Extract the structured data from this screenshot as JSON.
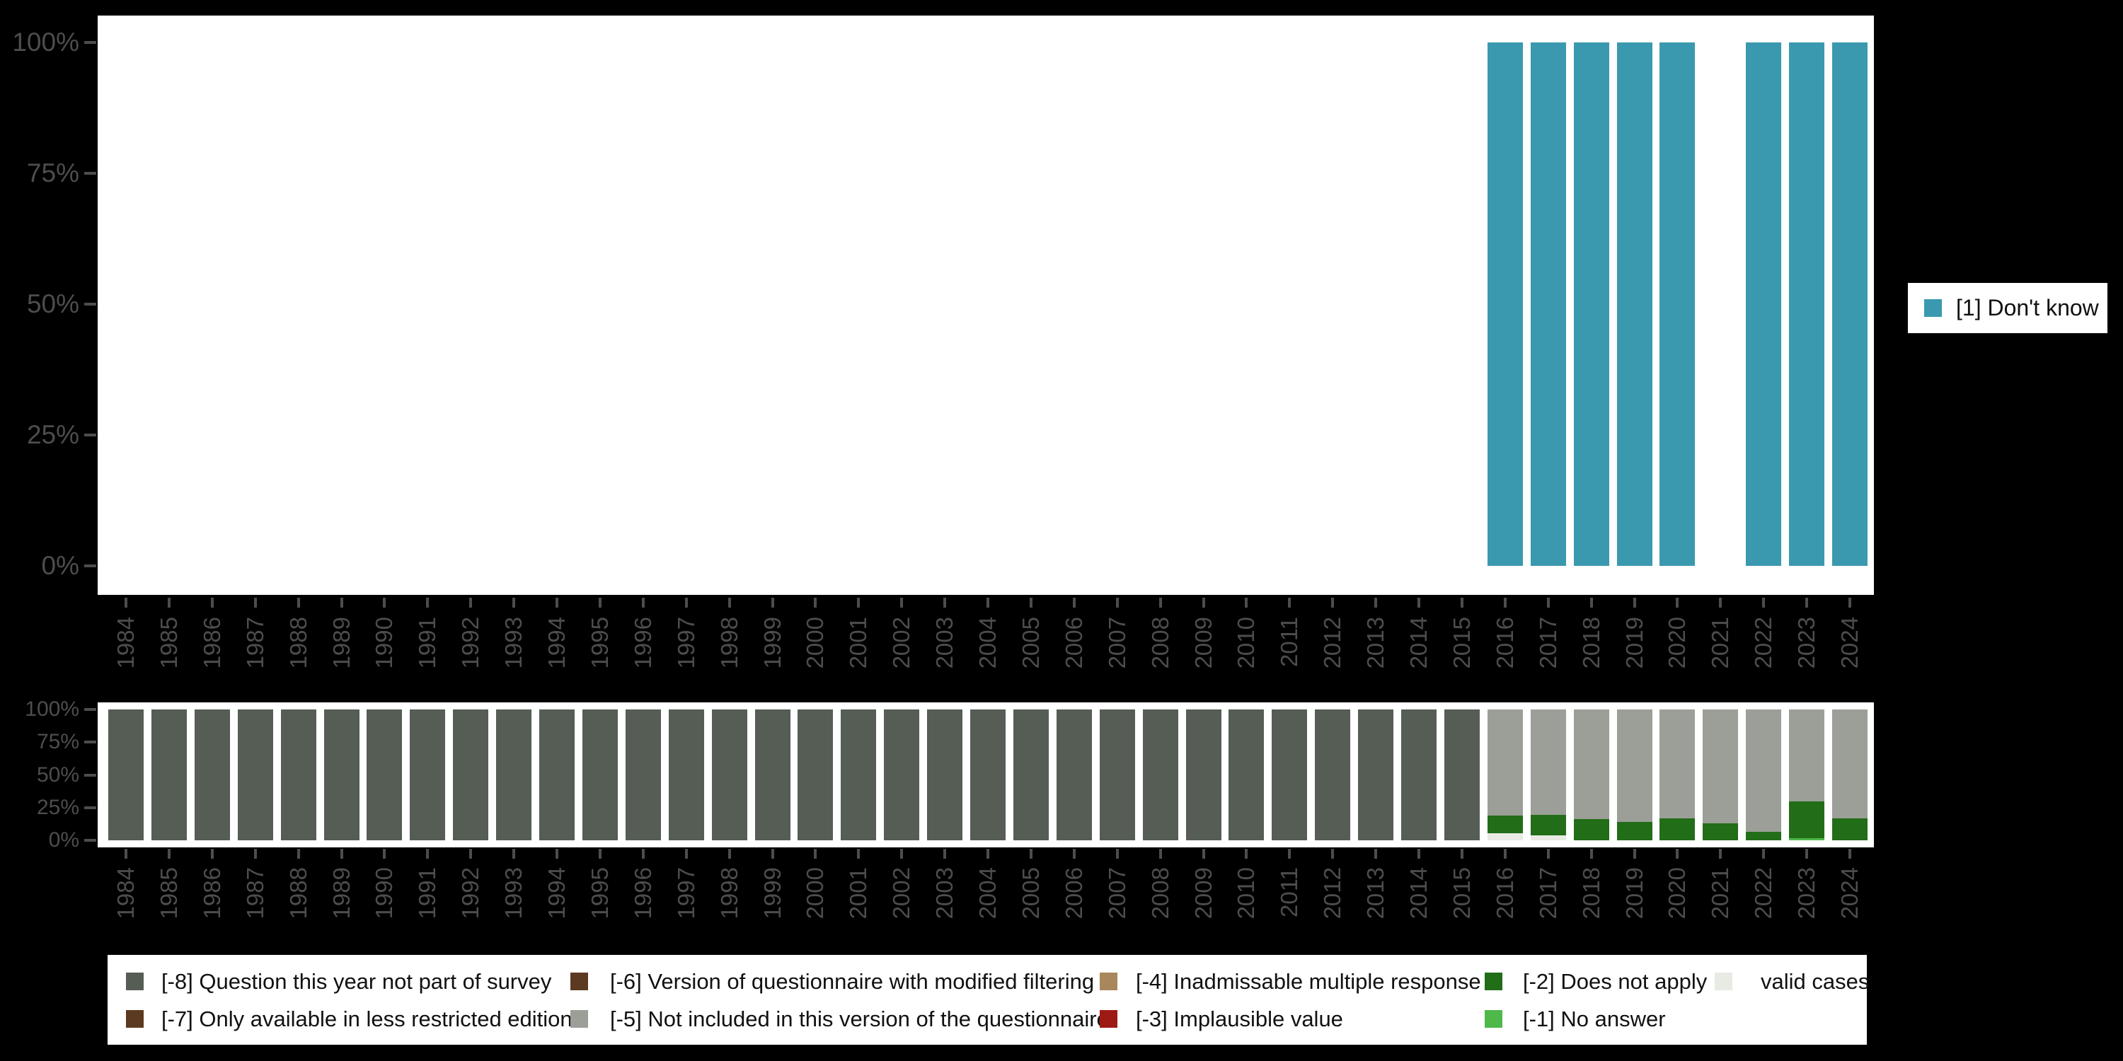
{
  "colors": {
    "background": "#000000",
    "panel": "#ffffff",
    "axis_text": "#4d4d4d",
    "dont_know": "#3a99ae",
    "question_not_part": "#555d55",
    "less_restricted": "#5c3a21",
    "modified_filtering": "#5c3a21",
    "not_included": "#9b9f97",
    "inadmissable": "#a8875c",
    "implausible": "#9e1a15",
    "does_not_apply": "#226d17",
    "no_answer": "#4eb84a",
    "valid_cases": "#e8ebe4"
  },
  "chart_data": [
    {
      "type": "bar",
      "subtype": "stacked-percent",
      "title": "",
      "xlabel": "",
      "ylabel": "",
      "ylim": [
        0,
        100
      ],
      "grid": false,
      "y_tick_labels": [
        "100%",
        "75%",
        "50%",
        "25%",
        "0%"
      ],
      "x": [
        "1984",
        "1985",
        "1986",
        "1987",
        "1988",
        "1989",
        "1990",
        "1991",
        "1992",
        "1993",
        "1994",
        "1995",
        "1996",
        "1997",
        "1998",
        "1999",
        "2000",
        "2001",
        "2002",
        "2003",
        "2004",
        "2005",
        "2006",
        "2007",
        "2008",
        "2009",
        "2010",
        "2011",
        "2012",
        "2013",
        "2014",
        "2015",
        "2016",
        "2017",
        "2018",
        "2019",
        "2020",
        "2021",
        "2022",
        "2023",
        "2024"
      ],
      "series": [
        {
          "name": "[1] Don't know",
          "color": "#3a99ae",
          "values": [
            0,
            0,
            0,
            0,
            0,
            0,
            0,
            0,
            0,
            0,
            0,
            0,
            0,
            0,
            0,
            0,
            0,
            0,
            0,
            0,
            0,
            0,
            0,
            0,
            0,
            0,
            0,
            0,
            0,
            0,
            0,
            0,
            100,
            100,
            100,
            100,
            100,
            0,
            100,
            100,
            100
          ]
        }
      ],
      "legend": {
        "position": "right",
        "items": [
          {
            "label": "[1] Don't know",
            "color": "#3a99ae"
          }
        ]
      }
    },
    {
      "type": "bar",
      "subtype": "stacked-percent",
      "title": "",
      "xlabel": "",
      "ylabel": "",
      "ylim": [
        0,
        100
      ],
      "grid": false,
      "y_tick_labels": [
        "100%",
        "75%",
        "50%",
        "25%",
        "0%"
      ],
      "x": [
        "1984",
        "1985",
        "1986",
        "1987",
        "1988",
        "1989",
        "1990",
        "1991",
        "1992",
        "1993",
        "1994",
        "1995",
        "1996",
        "1997",
        "1998",
        "1999",
        "2000",
        "2001",
        "2002",
        "2003",
        "2004",
        "2005",
        "2006",
        "2007",
        "2008",
        "2009",
        "2010",
        "2011",
        "2012",
        "2013",
        "2014",
        "2015",
        "2016",
        "2017",
        "2018",
        "2019",
        "2020",
        "2021",
        "2022",
        "2023",
        "2024"
      ],
      "series": [
        {
          "name": "valid cases",
          "color": "#e8ebe4",
          "values": [
            0,
            0,
            0,
            0,
            0,
            0,
            0,
            0,
            0,
            0,
            0,
            0,
            0,
            0,
            0,
            0,
            0,
            0,
            0,
            0,
            0,
            0,
            0,
            0,
            0,
            0,
            0,
            0,
            0,
            0,
            0,
            0,
            5.5,
            4,
            0,
            0,
            0,
            0,
            0,
            0,
            0
          ]
        },
        {
          "name": "[-1] No answer",
          "color": "#4eb84a",
          "values": [
            0,
            0,
            0,
            0,
            0,
            0,
            0,
            0,
            0,
            0,
            0,
            0,
            0,
            0,
            0,
            0,
            0,
            0,
            0,
            0,
            0,
            0,
            0,
            0,
            0,
            0,
            0,
            0,
            0,
            0,
            0,
            0,
            0,
            0,
            0,
            0,
            0,
            0,
            0,
            1.5,
            0
          ]
        },
        {
          "name": "[-2] Does not apply",
          "color": "#226d17",
          "values": [
            0,
            0,
            0,
            0,
            0,
            0,
            0,
            0,
            0,
            0,
            0,
            0,
            0,
            0,
            0,
            0,
            0,
            0,
            0,
            0,
            0,
            0,
            0,
            0,
            0,
            0,
            0,
            0,
            0,
            0,
            0,
            0,
            13.5,
            15.5,
            16,
            14,
            17,
            13,
            6.5,
            28.5,
            16.5
          ]
        },
        {
          "name": "[-5] Not included in this version of the questionnaire",
          "color": "#9b9f97",
          "values": [
            0,
            0,
            0,
            0,
            0,
            0,
            0,
            0,
            0,
            0,
            0,
            0,
            0,
            0,
            0,
            0,
            0,
            0,
            0,
            0,
            0,
            0,
            0,
            0,
            0,
            0,
            0,
            0,
            0,
            0,
            0,
            0,
            81,
            80.5,
            84,
            86,
            83,
            87,
            93.5,
            70,
            83.5
          ]
        },
        {
          "name": "[-8] Question this year not part of survey",
          "color": "#555d55",
          "values": [
            100,
            100,
            100,
            100,
            100,
            100,
            100,
            100,
            100,
            100,
            100,
            100,
            100,
            100,
            100,
            100,
            100,
            100,
            100,
            100,
            100,
            100,
            100,
            100,
            100,
            100,
            100,
            100,
            100,
            100,
            100,
            100,
            0,
            0,
            0,
            0,
            0,
            0,
            0,
            0,
            0
          ]
        }
      ],
      "legend": {
        "position": "bottom"
      }
    }
  ],
  "legend_right": {
    "label": "[1] Don't know",
    "color": "#3a99ae"
  },
  "legend_bottom": {
    "items": [
      {
        "label": "[-8] Question this year not part of survey",
        "color": "#555d55",
        "col": 0,
        "row": 0
      },
      {
        "label": "[-7] Only available in less restricted edition",
        "color": "#5c3a21",
        "col": 0,
        "row": 1
      },
      {
        "label": "[-6] Version of questionnaire with modified filtering",
        "color": "#5c3a21",
        "col": 1,
        "row": 0
      },
      {
        "label": "[-5] Not included in this version of the questionnaire",
        "color": "#9b9f97",
        "col": 1,
        "row": 1
      },
      {
        "label": "[-4] Inadmissable multiple response",
        "color": "#a8875c",
        "col": 2,
        "row": 0
      },
      {
        "label": "[-3] Implausible value",
        "color": "#9e1a15",
        "col": 2,
        "row": 1
      },
      {
        "label": "[-2] Does not apply",
        "color": "#226d17",
        "col": 3,
        "row": 0
      },
      {
        "label": "[-1] No answer",
        "color": "#4eb84a",
        "col": 3,
        "row": 1
      },
      {
        "label": "valid cases",
        "color": "#e8ebe4",
        "col": 4,
        "row": 0
      }
    ]
  }
}
